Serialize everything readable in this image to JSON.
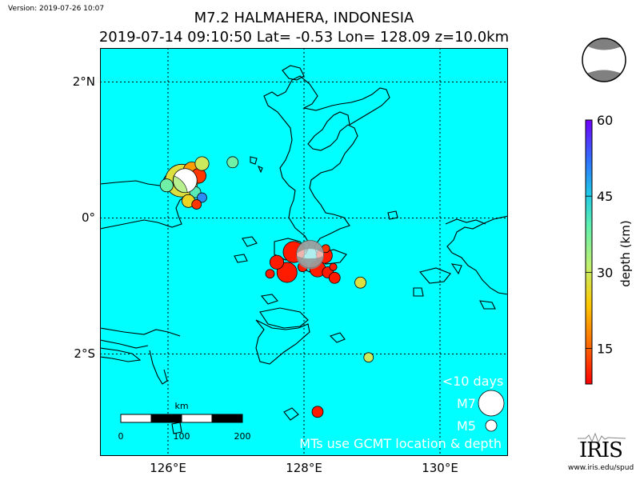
{
  "version": "Version: 2019-07-26 10:07",
  "title": {
    "line1": "M7.2 HALMAHERA, INDONESIA",
    "line2": "2019-07-14 09:10:50 Lat= -0.53 Lon= 128.09 z=10.0km"
  },
  "map": {
    "ocean_color": "#00ffff",
    "lat_range": [
      -3.5,
      2.5
    ],
    "lon_range": [
      125.0,
      131.0
    ],
    "lat_ticks": [
      {
        "value": 2,
        "label": "2°N"
      },
      {
        "value": 0,
        "label": "0°"
      },
      {
        "value": -2,
        "label": "2°S"
      }
    ],
    "lon_ticks": [
      {
        "value": 126,
        "label": "126°E"
      },
      {
        "value": 128,
        "label": "128°E"
      },
      {
        "value": 130,
        "label": "130°E"
      }
    ],
    "scalebar": {
      "unit": "km",
      "labels": [
        "0",
        "100",
        "200"
      ]
    },
    "legend": {
      "title": "<10 days",
      "m7_label": "M7",
      "m5_label": "M5",
      "note": "MTs use GCMT location & depth"
    },
    "mainshock": {
      "lat": -0.53,
      "lon": 128.09,
      "depth_km": 10.0,
      "mag": 7.2
    },
    "events": [
      {
        "lat": 0.55,
        "lon": 126.2,
        "depth": 28,
        "mag": 6.9
      },
      {
        "lat": 0.7,
        "lon": 126.35,
        "depth": 20,
        "mag": 5.6
      },
      {
        "lat": 0.62,
        "lon": 126.45,
        "depth": 12,
        "mag": 5.4
      },
      {
        "lat": 0.8,
        "lon": 126.5,
        "depth": 30,
        "mag": 5.3
      },
      {
        "lat": 0.48,
        "lon": 125.98,
        "depth": 38,
        "mag": 5.2
      },
      {
        "lat": 0.38,
        "lon": 126.4,
        "depth": 40,
        "mag": 5.0
      },
      {
        "lat": 0.3,
        "lon": 126.5,
        "depth": 50,
        "mag": 4.8
      },
      {
        "lat": 0.25,
        "lon": 126.3,
        "depth": 26,
        "mag": 5.2
      },
      {
        "lat": 0.2,
        "lon": 126.42,
        "depth": 12,
        "mag": 4.8
      },
      {
        "lat": 0.82,
        "lon": 126.95,
        "depth": 38,
        "mag": 5.0
      },
      {
        "lat": -0.5,
        "lon": 127.85,
        "depth": 10,
        "mag": 6.0
      },
      {
        "lat": -0.8,
        "lon": 127.75,
        "depth": 10,
        "mag": 5.9
      },
      {
        "lat": -0.65,
        "lon": 127.6,
        "depth": 10,
        "mag": 5.3
      },
      {
        "lat": -0.55,
        "lon": 128.3,
        "depth": 10,
        "mag": 5.5
      },
      {
        "lat": -0.75,
        "lon": 128.2,
        "depth": 10,
        "mag": 5.5
      },
      {
        "lat": -0.8,
        "lon": 128.35,
        "depth": 10,
        "mag": 5.0
      },
      {
        "lat": -0.88,
        "lon": 128.45,
        "depth": 10,
        "mag": 5.0
      },
      {
        "lat": -0.72,
        "lon": 127.98,
        "depth": 10,
        "mag": 4.8
      },
      {
        "lat": -0.45,
        "lon": 128.32,
        "depth": 12,
        "mag": 4.6
      },
      {
        "lat": -0.72,
        "lon": 128.43,
        "depth": 10,
        "mag": 4.5
      },
      {
        "lat": -0.82,
        "lon": 127.5,
        "depth": 10,
        "mag": 4.7
      },
      {
        "lat": -0.95,
        "lon": 128.83,
        "depth": 28,
        "mag": 5.0
      },
      {
        "lat": -2.05,
        "lon": 128.95,
        "depth": 30,
        "mag": 4.8
      },
      {
        "lat": -2.85,
        "lon": 128.2,
        "depth": 10,
        "mag": 5.0
      }
    ]
  },
  "colorbar": {
    "title": "depth (km)",
    "min": 8,
    "max": 60,
    "ticks": [
      {
        "value": 15,
        "label": "15"
      },
      {
        "value": 30,
        "label": "30"
      },
      {
        "value": 45,
        "label": "45"
      },
      {
        "value": 60,
        "label": "60"
      }
    ]
  },
  "logo": {
    "word": "IRIS",
    "url": "www.iris.edu/spud"
  }
}
